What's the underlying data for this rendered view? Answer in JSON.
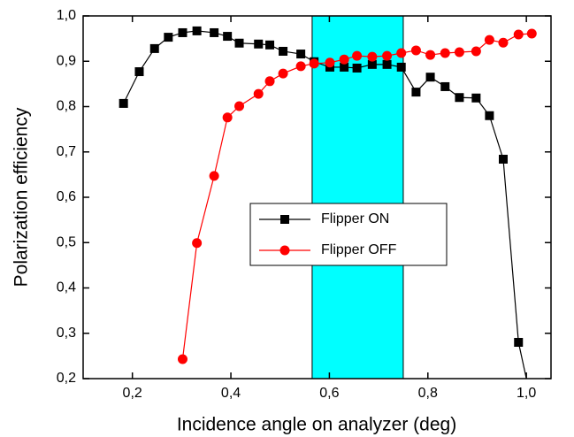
{
  "chart_data": {
    "type": "line",
    "x_label": "Incidence angle on analyzer (deg)",
    "y_label": "Polarization efficiency",
    "xlim": [
      0.1,
      1.05
    ],
    "ylim": [
      0.2,
      1.0
    ],
    "xticks": [
      {
        "value": 0.2,
        "label": "0,2"
      },
      {
        "value": 0.4,
        "label": "0,4"
      },
      {
        "value": 0.6,
        "label": "0,6"
      },
      {
        "value": 0.8,
        "label": "0,8"
      },
      {
        "value": 1.0,
        "label": "1,0"
      }
    ],
    "yticks": [
      {
        "value": 0.2,
        "label": "0,2"
      },
      {
        "value": 0.3,
        "label": "0,3"
      },
      {
        "value": 0.4,
        "label": "0,4"
      },
      {
        "value": 0.5,
        "label": "0,5"
      },
      {
        "value": 0.6,
        "label": "0,6"
      },
      {
        "value": 0.7,
        "label": "0,7"
      },
      {
        "value": 0.8,
        "label": "0,8"
      },
      {
        "value": 0.9,
        "label": "0,9"
      },
      {
        "value": 1.0,
        "label": "1,0"
      }
    ],
    "shaded_region": {
      "x": [
        0.565,
        0.75
      ],
      "color": "#00ffff"
    },
    "legend_position": "center",
    "series": [
      {
        "name": "Flipper ON",
        "color": "#000000",
        "marker": "square",
        "x": [
          0.182,
          0.214,
          0.245,
          0.273,
          0.302,
          0.331,
          0.366,
          0.393,
          0.417,
          0.456,
          0.479,
          0.506,
          0.542,
          0.569,
          0.601,
          0.63,
          0.656,
          0.687,
          0.717,
          0.746,
          0.776,
          0.805,
          0.835,
          0.864,
          0.898,
          0.925,
          0.953,
          0.984,
          1.02
        ],
        "values": [
          0.807,
          0.877,
          0.928,
          0.953,
          0.963,
          0.967,
          0.963,
          0.955,
          0.94,
          0.938,
          0.936,
          0.922,
          0.916,
          0.899,
          0.887,
          0.887,
          0.885,
          0.893,
          0.893,
          0.887,
          0.832,
          0.865,
          0.844,
          0.82,
          0.819,
          0.78,
          0.684,
          0.28,
          0.1
        ]
      },
      {
        "name": "Flipper OFF",
        "color": "#ff0000",
        "marker": "circle",
        "x": [
          0.302,
          0.331,
          0.366,
          0.393,
          0.417,
          0.456,
          0.479,
          0.506,
          0.542,
          0.569,
          0.601,
          0.63,
          0.656,
          0.687,
          0.717,
          0.746,
          0.776,
          0.805,
          0.835,
          0.864,
          0.898,
          0.925,
          0.953,
          0.984,
          1.011
        ],
        "values": [
          0.243,
          0.499,
          0.647,
          0.776,
          0.801,
          0.828,
          0.856,
          0.873,
          0.889,
          0.895,
          0.897,
          0.904,
          0.912,
          0.91,
          0.912,
          0.918,
          0.924,
          0.914,
          0.918,
          0.92,
          0.922,
          0.947,
          0.941,
          0.959,
          0.961
        ]
      }
    ]
  }
}
